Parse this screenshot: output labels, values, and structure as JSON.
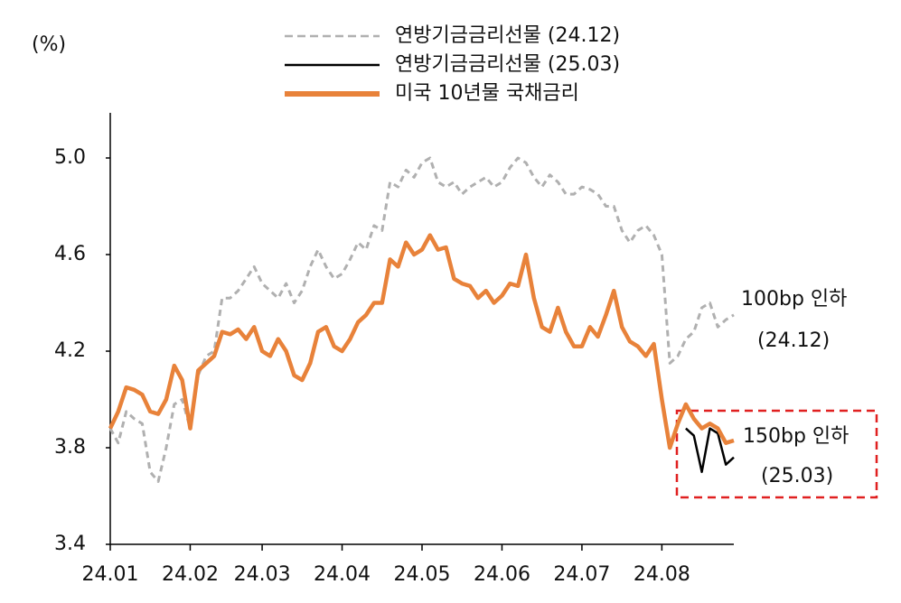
{
  "chart_data": {
    "type": "line",
    "y_unit_label": "(%)",
    "categories": [
      "24.01",
      null,
      null,
      null,
      null,
      null,
      null,
      null,
      null,
      null,
      "24.02",
      null,
      null,
      null,
      null,
      null,
      null,
      null,
      null,
      "24.03",
      null,
      null,
      null,
      null,
      null,
      null,
      null,
      null,
      null,
      "24.04",
      null,
      null,
      null,
      null,
      null,
      null,
      null,
      null,
      null,
      "24.05",
      null,
      null,
      null,
      null,
      null,
      null,
      null,
      null,
      null,
      "24.06",
      null,
      null,
      null,
      null,
      null,
      null,
      null,
      null,
      null,
      "24.07",
      null,
      null,
      null,
      null,
      null,
      null,
      null,
      null,
      null,
      "24.08",
      null,
      null,
      null,
      null,
      null,
      null,
      null,
      null,
      null
    ],
    "series": [
      {
        "name": "연방기금금리선물 (24.12)",
        "color": "#b0b0b0",
        "dash": true,
        "width": 3,
        "values": [
          3.88,
          3.82,
          3.95,
          3.92,
          3.9,
          3.7,
          3.66,
          3.8,
          3.98,
          4.0,
          3.88,
          4.1,
          4.18,
          4.2,
          4.42,
          4.42,
          4.45,
          4.5,
          4.55,
          4.48,
          4.45,
          4.42,
          4.48,
          4.4,
          4.45,
          4.55,
          4.62,
          4.55,
          4.5,
          4.52,
          4.58,
          4.65,
          4.62,
          4.72,
          4.7,
          4.9,
          4.88,
          4.95,
          4.92,
          4.98,
          5.0,
          4.9,
          4.88,
          4.9,
          4.85,
          4.88,
          4.9,
          4.92,
          4.88,
          4.9,
          4.96,
          5.0,
          4.98,
          4.92,
          4.88,
          4.93,
          4.9,
          4.85,
          4.85,
          4.88,
          4.87,
          4.85,
          4.8,
          4.8,
          4.7,
          4.65,
          4.7,
          4.72,
          4.68,
          4.6,
          4.15,
          4.18,
          4.25,
          4.28,
          4.38,
          4.4,
          4.3,
          4.33,
          4.35
        ]
      },
      {
        "name": "연방기금금리선물 (25.03)",
        "color": "#000000",
        "dash": false,
        "width": 2.5,
        "values": [
          null,
          null,
          null,
          null,
          null,
          null,
          null,
          null,
          null,
          null,
          null,
          null,
          null,
          null,
          null,
          null,
          null,
          null,
          null,
          null,
          null,
          null,
          null,
          null,
          null,
          null,
          null,
          null,
          null,
          null,
          null,
          null,
          null,
          null,
          null,
          null,
          null,
          null,
          null,
          null,
          null,
          null,
          null,
          null,
          null,
          null,
          null,
          null,
          null,
          null,
          null,
          null,
          null,
          null,
          null,
          null,
          null,
          null,
          null,
          null,
          null,
          null,
          null,
          null,
          null,
          null,
          null,
          null,
          null,
          null,
          null,
          null,
          3.88,
          3.85,
          3.7,
          3.88,
          3.86,
          3.73,
          3.76
        ]
      },
      {
        "name": "미국 10년물 국채금리",
        "color": "#e8823a",
        "dash": false,
        "width": 4.5,
        "values": [
          3.88,
          3.95,
          4.05,
          4.04,
          4.02,
          3.95,
          3.94,
          4.0,
          4.14,
          4.08,
          3.88,
          4.12,
          4.15,
          4.18,
          4.28,
          4.27,
          4.29,
          4.25,
          4.3,
          4.2,
          4.18,
          4.25,
          4.2,
          4.1,
          4.08,
          4.15,
          4.28,
          4.3,
          4.22,
          4.2,
          4.25,
          4.32,
          4.35,
          4.4,
          4.4,
          4.58,
          4.55,
          4.65,
          4.6,
          4.62,
          4.68,
          4.62,
          4.63,
          4.5,
          4.48,
          4.47,
          4.42,
          4.45,
          4.4,
          4.43,
          4.48,
          4.47,
          4.6,
          4.42,
          4.3,
          4.28,
          4.38,
          4.28,
          4.22,
          4.22,
          4.3,
          4.26,
          4.35,
          4.45,
          4.3,
          4.24,
          4.22,
          4.18,
          4.23,
          4.0,
          3.8,
          3.9,
          3.98,
          3.92,
          3.88,
          3.9,
          3.88,
          3.82,
          3.83
        ]
      }
    ],
    "ylim": [
      3.4,
      5.2
    ],
    "yticks": [
      3.4,
      3.8,
      4.2,
      4.6,
      {
        "value": 5,
        "label": "5.0"
      }
    ],
    "annotations": [
      "100bp 인하",
      "(24.12)",
      "150bp 인하",
      "(25.03)"
    ],
    "legend": "top"
  }
}
